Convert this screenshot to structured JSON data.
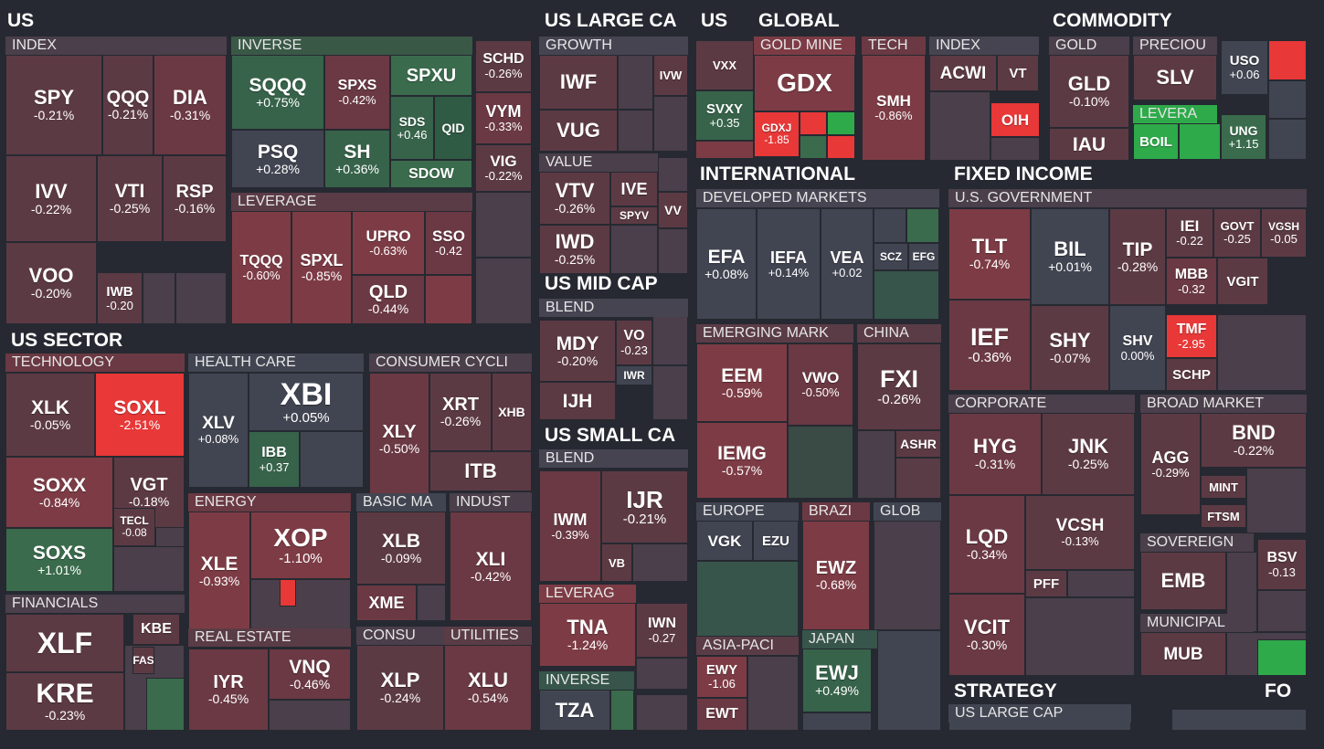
{
  "colors": {
    "background": "#262931",
    "neutral": "#414551",
    "red_light": "#5c3a44",
    "red_mid": "#7d3c45",
    "red_strong": "#e83838",
    "green_mid": "#3a6b4c",
    "green_strong": "#2eaa4a"
  },
  "chart_data": {
    "type": "heatmap",
    "groups": [
      {
        "label": "US",
        "sections": [
          {
            "label": "INDEX",
            "items": [
              {
                "ticker": "SPY",
                "change": "-0.21%"
              },
              {
                "ticker": "QQQ",
                "change": "-0.21%"
              },
              {
                "ticker": "DIA",
                "change": "-0.31%"
              },
              {
                "ticker": "IVV",
                "change": "-0.22%"
              },
              {
                "ticker": "VTI",
                "change": "-0.25%"
              },
              {
                "ticker": "RSP",
                "change": "-0.16%"
              },
              {
                "ticker": "VOO",
                "change": "-0.20%"
              },
              {
                "ticker": "IWB",
                "change": "-0.20"
              }
            ]
          },
          {
            "label": "INVERSE",
            "items": [
              {
                "ticker": "SQQQ",
                "change": "+0.75%"
              },
              {
                "ticker": "SPXS",
                "change": "-0.42%"
              },
              {
                "ticker": "SPXU",
                "change": ""
              },
              {
                "ticker": "PSQ",
                "change": "+0.28%"
              },
              {
                "ticker": "SH",
                "change": "+0.36%"
              },
              {
                "ticker": "SDS",
                "change": "+0.46"
              },
              {
                "ticker": "QID",
                "change": ""
              },
              {
                "ticker": "SDOW",
                "change": ""
              }
            ]
          },
          {
            "label": "LEVERAGE",
            "items": [
              {
                "ticker": "TQQQ",
                "change": "-0.60%"
              },
              {
                "ticker": "SPXL",
                "change": "-0.85%"
              },
              {
                "ticker": "UPRO",
                "change": "-0.63%"
              },
              {
                "ticker": "SSO",
                "change": "-0.42"
              },
              {
                "ticker": "QLD",
                "change": "-0.44%"
              }
            ]
          },
          {
            "label": "",
            "items": [
              {
                "ticker": "SCHD",
                "change": "-0.26%"
              },
              {
                "ticker": "VYM",
                "change": "-0.33%"
              },
              {
                "ticker": "VIG",
                "change": "-0.22%"
              }
            ]
          }
        ]
      },
      {
        "label": "US LARGE CA",
        "sections": [
          {
            "label": "GROWTH",
            "items": [
              {
                "ticker": "IWF",
                "change": ""
              },
              {
                "ticker": "VUG",
                "change": ""
              },
              {
                "ticker": "IVW",
                "change": ""
              }
            ]
          },
          {
            "label": "VALUE",
            "items": [
              {
                "ticker": "VTV",
                "change": "-0.26%"
              },
              {
                "ticker": "IVE",
                "change": ""
              },
              {
                "ticker": "SPYV",
                "change": ""
              },
              {
                "ticker": "IWD",
                "change": "-0.25%"
              },
              {
                "ticker": "VV",
                "change": ""
              }
            ]
          }
        ]
      },
      {
        "label": "US MID CAP",
        "sections": [
          {
            "label": "BLEND",
            "items": [
              {
                "ticker": "MDY",
                "change": "-0.20%"
              },
              {
                "ticker": "VO",
                "change": "-0.23"
              },
              {
                "ticker": "IWR",
                "change": ""
              },
              {
                "ticker": "IJH",
                "change": ""
              }
            ]
          }
        ]
      },
      {
        "label": "US SMALL CA",
        "sections": [
          {
            "label": "BLEND",
            "items": [
              {
                "ticker": "IWM",
                "change": "-0.39%"
              },
              {
                "ticker": "IJR",
                "change": "-0.21%"
              },
              {
                "ticker": "VB",
                "change": ""
              }
            ]
          },
          {
            "label": "LEVERAG",
            "items": [
              {
                "ticker": "TNA",
                "change": "-1.24%"
              },
              {
                "ticker": "IWN",
                "change": "-0.27"
              }
            ]
          },
          {
            "label": "INVERSE",
            "items": [
              {
                "ticker": "TZA",
                "change": ""
              }
            ]
          }
        ]
      },
      {
        "label": "US",
        "sections": [
          {
            "label": "",
            "items": [
              {
                "ticker": "VXX",
                "change": ""
              },
              {
                "ticker": "SVXY",
                "change": "+0.35"
              }
            ]
          }
        ]
      },
      {
        "label": "GLOBAL",
        "sections": [
          {
            "label": "GOLD MINE",
            "items": [
              {
                "ticker": "GDX",
                "change": ""
              },
              {
                "ticker": "GDXJ",
                "change": "-1.85"
              }
            ]
          },
          {
            "label": "TECH",
            "items": [
              {
                "ticker": "SMH",
                "change": "-0.86%"
              }
            ]
          },
          {
            "label": "INDEX",
            "items": [
              {
                "ticker": "ACWI",
                "change": ""
              },
              {
                "ticker": "VT",
                "change": ""
              },
              {
                "ticker": "OIH",
                "change": ""
              }
            ]
          }
        ]
      },
      {
        "label": "COMMODITY",
        "sections": [
          {
            "label": "GOLD",
            "items": [
              {
                "ticker": "GLD",
                "change": "-0.10%"
              },
              {
                "ticker": "IAU",
                "change": ""
              }
            ]
          },
          {
            "label": "PRECIOU",
            "items": [
              {
                "ticker": "SLV",
                "change": ""
              }
            ]
          },
          {
            "label": "",
            "items": [
              {
                "ticker": "USO",
                "change": "+0.06"
              }
            ]
          },
          {
            "label": "LEVERA",
            "items": [
              {
                "ticker": "BOIL",
                "change": ""
              },
              {
                "ticker": "UNG",
                "change": "+1.15"
              }
            ]
          }
        ]
      },
      {
        "label": "INTERNATIONAL",
        "sections": [
          {
            "label": "DEVELOPED MARKETS",
            "items": [
              {
                "ticker": "EFA",
                "change": "+0.08%"
              },
              {
                "ticker": "IEFA",
                "change": "+0.14%"
              },
              {
                "ticker": "VEA",
                "change": "+0.02"
              },
              {
                "ticker": "SCZ",
                "change": ""
              },
              {
                "ticker": "EFG",
                "change": ""
              }
            ]
          },
          {
            "label": "EMERGING MARK",
            "items": [
              {
                "ticker": "EEM",
                "change": "-0.59%"
              },
              {
                "ticker": "VWO",
                "change": "-0.50%"
              },
              {
                "ticker": "IEMG",
                "change": "-0.57%"
              }
            ]
          },
          {
            "label": "CHINA",
            "items": [
              {
                "ticker": "FXI",
                "change": "-0.26%"
              },
              {
                "ticker": "ASHR",
                "change": ""
              }
            ]
          },
          {
            "label": "EUROPE",
            "items": [
              {
                "ticker": "VGK",
                "change": ""
              },
              {
                "ticker": "EZU",
                "change": ""
              }
            ]
          },
          {
            "label": "BRAZI",
            "items": [
              {
                "ticker": "EWZ",
                "change": "-0.68%"
              }
            ]
          },
          {
            "label": "GLOB",
            "items": []
          },
          {
            "label": "ASIA-PACI",
            "items": [
              {
                "ticker": "EWY",
                "change": "-1.06"
              },
              {
                "ticker": "EWT",
                "change": ""
              }
            ]
          },
          {
            "label": "JAPAN",
            "items": [
              {
                "ticker": "EWJ",
                "change": "+0.49%"
              }
            ]
          }
        ]
      },
      {
        "label": "FIXED INCOME",
        "sections": [
          {
            "label": "U.S. GOVERNMENT",
            "items": [
              {
                "ticker": "TLT",
                "change": "-0.74%"
              },
              {
                "ticker": "BIL",
                "change": "+0.01%"
              },
              {
                "ticker": "TIP",
                "change": "-0.28%"
              },
              {
                "ticker": "IEI",
                "change": "-0.22"
              },
              {
                "ticker": "GOVT",
                "change": "-0.25"
              },
              {
                "ticker": "VGSH",
                "change": "-0.05"
              },
              {
                "ticker": "MBB",
                "change": "-0.32"
              },
              {
                "ticker": "VGIT",
                "change": ""
              },
              {
                "ticker": "IEF",
                "change": "-0.36%"
              },
              {
                "ticker": "SHY",
                "change": "-0.07%"
              },
              {
                "ticker": "SHV",
                "change": "0.00%"
              },
              {
                "ticker": "TMF",
                "change": "-2.95"
              },
              {
                "ticker": "SCHP",
                "change": ""
              }
            ]
          },
          {
            "label": "CORPORATE",
            "items": [
              {
                "ticker": "HYG",
                "change": "-0.31%"
              },
              {
                "ticker": "JNK",
                "change": "-0.25%"
              },
              {
                "ticker": "LQD",
                "change": "-0.34%"
              },
              {
                "ticker": "VCSH",
                "change": "-0.13%"
              },
              {
                "ticker": "PFF",
                "change": ""
              },
              {
                "ticker": "VCIT",
                "change": "-0.30%"
              }
            ]
          },
          {
            "label": "BROAD MARKET",
            "items": [
              {
                "ticker": "AGG",
                "change": "-0.29%"
              },
              {
                "ticker": "BND",
                "change": "-0.22%"
              },
              {
                "ticker": "MINT",
                "change": ""
              },
              {
                "ticker": "FTSM",
                "change": ""
              }
            ]
          },
          {
            "label": "SOVEREIGN",
            "items": [
              {
                "ticker": "EMB",
                "change": ""
              },
              {
                "ticker": "BSV",
                "change": "-0.13"
              }
            ]
          },
          {
            "label": "MUNICIPAL",
            "items": [
              {
                "ticker": "MUB",
                "change": ""
              }
            ]
          }
        ]
      },
      {
        "label": "US SECTOR",
        "sections": [
          {
            "label": "TECHNOLOGY",
            "items": [
              {
                "ticker": "XLK",
                "change": "-0.05%"
              },
              {
                "ticker": "SOXL",
                "change": "-2.51%"
              },
              {
                "ticker": "SOXX",
                "change": "-0.84%"
              },
              {
                "ticker": "VGT",
                "change": "-0.18%"
              },
              {
                "ticker": "TECL",
                "change": "-0.08"
              },
              {
                "ticker": "SOXS",
                "change": "+1.01%"
              }
            ]
          },
          {
            "label": "FINANCIALS",
            "items": [
              {
                "ticker": "XLF",
                "change": ""
              },
              {
                "ticker": "KBE",
                "change": ""
              },
              {
                "ticker": "FAS",
                "change": ""
              },
              {
                "ticker": "KRE",
                "change": "-0.23%"
              }
            ]
          },
          {
            "label": "HEALTH CARE",
            "items": [
              {
                "ticker": "XLV",
                "change": "+0.08%"
              },
              {
                "ticker": "XBI",
                "change": "+0.05%"
              },
              {
                "ticker": "IBB",
                "change": "+0.37"
              }
            ]
          },
          {
            "label": "CONSUMER CYCLI",
            "items": [
              {
                "ticker": "XLY",
                "change": "-0.50%"
              },
              {
                "ticker": "XRT",
                "change": "-0.26%"
              },
              {
                "ticker": "XHB",
                "change": ""
              },
              {
                "ticker": "ITB",
                "change": ""
              }
            ]
          },
          {
            "label": "ENERGY",
            "items": [
              {
                "ticker": "XLE",
                "change": "-0.93%"
              },
              {
                "ticker": "XOP",
                "change": "-1.10%"
              }
            ]
          },
          {
            "label": "BASIC MA",
            "items": [
              {
                "ticker": "XLB",
                "change": "-0.09%"
              },
              {
                "ticker": "XME",
                "change": ""
              }
            ]
          },
          {
            "label": "INDUST",
            "items": [
              {
                "ticker": "XLI",
                "change": "-0.42%"
              }
            ]
          },
          {
            "label": "REAL ESTATE",
            "items": [
              {
                "ticker": "IYR",
                "change": "-0.45%"
              },
              {
                "ticker": "VNQ",
                "change": "-0.46%"
              }
            ]
          },
          {
            "label": "CONSU",
            "items": [
              {
                "ticker": "XLP",
                "change": "-0.24%"
              }
            ]
          },
          {
            "label": "UTILITIES",
            "items": [
              {
                "ticker": "XLU",
                "change": "-0.54%"
              }
            ]
          }
        ]
      },
      {
        "label": "STRATEGY",
        "sections": [
          {
            "label": "US LARGE CAP",
            "items": []
          }
        ]
      },
      {
        "label": "FO",
        "sections": []
      }
    ]
  }
}
